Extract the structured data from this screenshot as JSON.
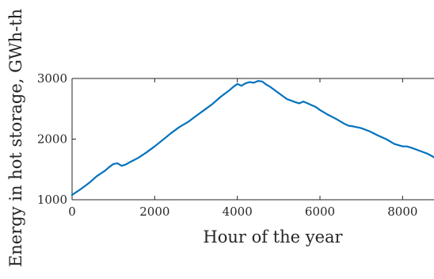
{
  "chart_data": {
    "type": "line",
    "title": "",
    "xlabel": "Hour of the year",
    "ylabel": "Energy in hot storage, GWh-th",
    "xlim": [
      0,
      8760
    ],
    "ylim": [
      1000,
      3000
    ],
    "xticks": [
      0,
      2000,
      4000,
      6000,
      8000
    ],
    "yticks": [
      1000,
      2000,
      3000
    ],
    "xtick_labels": [
      "0",
      "2000",
      "4000",
      "6000",
      "8000"
    ],
    "ytick_labels": [
      "1000",
      "2000",
      "3000"
    ],
    "grid": false,
    "series": [
      {
        "color": "#0072BD",
        "x": [
          0,
          200,
          400,
          600,
          800,
          900,
          1000,
          1100,
          1200,
          1300,
          1400,
          1600,
          1800,
          2000,
          2200,
          2400,
          2600,
          2800,
          3000,
          3200,
          3400,
          3600,
          3800,
          3900,
          4000,
          4100,
          4200,
          4300,
          4400,
          4500,
          4600,
          4700,
          4800,
          5000,
          5200,
          5400,
          5500,
          5600,
          5700,
          5800,
          5900,
          6000,
          6200,
          6400,
          6600,
          6700,
          6800,
          7000,
          7200,
          7400,
          7600,
          7800,
          8000,
          8100,
          8200,
          8400,
          8600,
          8760
        ],
        "y": [
          1080,
          1170,
          1270,
          1390,
          1480,
          1540,
          1590,
          1600,
          1560,
          1580,
          1620,
          1690,
          1780,
          1880,
          1990,
          2100,
          2200,
          2280,
          2380,
          2480,
          2580,
          2700,
          2800,
          2860,
          2910,
          2880,
          2920,
          2940,
          2930,
          2960,
          2950,
          2900,
          2860,
          2760,
          2660,
          2610,
          2590,
          2620,
          2590,
          2560,
          2530,
          2480,
          2400,
          2330,
          2250,
          2220,
          2210,
          2180,
          2130,
          2060,
          2000,
          1920,
          1880,
          1880,
          1860,
          1810,
          1760,
          1700
        ]
      }
    ]
  }
}
